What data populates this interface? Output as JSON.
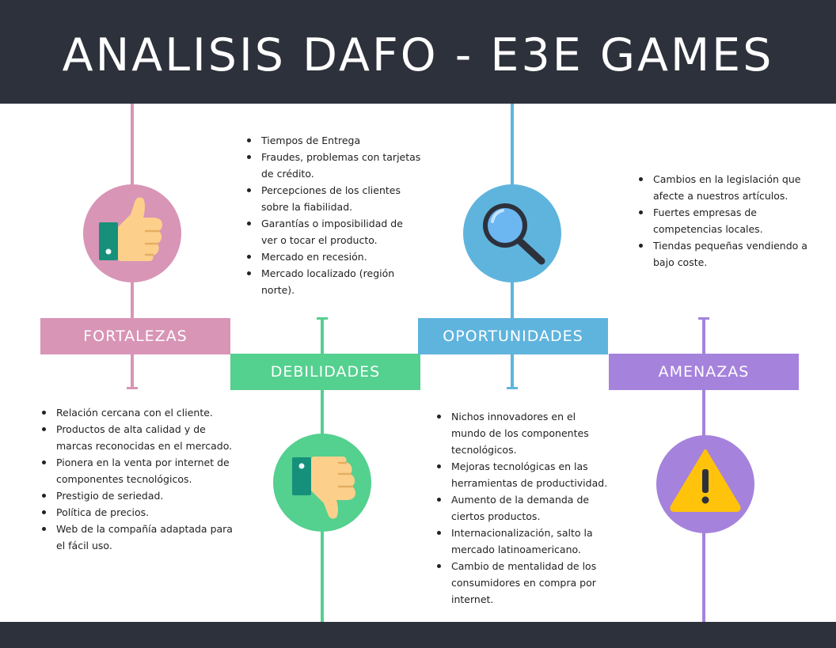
{
  "title": "ANALISIS DAFO - E3E GAMES",
  "colors": {
    "fortalezas": "#d895b6",
    "debilidades": "#54d08f",
    "oportunidades": "#5fb4dd",
    "amenazas": "#a582dc",
    "dark": "#2d313b"
  },
  "fortalezas": {
    "label": "FORTALEZAS",
    "icon": "thumbs-up-icon",
    "items": [
      "Relación cercana con el cliente.",
      "Productos de alta calidad y de marcas reconocidas en el mercado.",
      "Pionera en la venta por internet de componentes tecnológicos.",
      "Prestigio de seriedad.",
      "Política de precios.",
      "Web de la compañía adaptada para el fácil uso."
    ]
  },
  "debilidades": {
    "label": "DEBILIDADES",
    "icon": "thumbs-down-icon",
    "items": [
      "Tiempos de Entrega",
      "Fraudes, problemas con tarjetas de crédito.",
      "Percepciones de los clientes sobre la fiabilidad.",
      "Garantías o imposibilidad de ver o tocar el producto.",
      "Mercado en recesión.",
      "Mercado localizado (región norte)."
    ]
  },
  "oportunidades": {
    "label": "OPORTUNIDADES",
    "icon": "magnifier-icon",
    "items": [
      "Nichos innovadores en el mundo de los componentes tecnológicos.",
      "Mejoras tecnológicas en las herramientas de productividad.",
      "Aumento de la demanda de ciertos productos.",
      "Internacionalización, salto la mercado latinoamericano.",
      "Cambio de mentalidad de los consumidores en compra por internet."
    ]
  },
  "amenazas": {
    "label": "AMENAZAS",
    "icon": "warning-icon",
    "items": [
      "Cambios en la legislación que afecte a nuestros artículos.",
      "Fuertes empresas  de competencias locales.",
      "Tiendas pequeñas vendiendo a bajo coste."
    ]
  }
}
